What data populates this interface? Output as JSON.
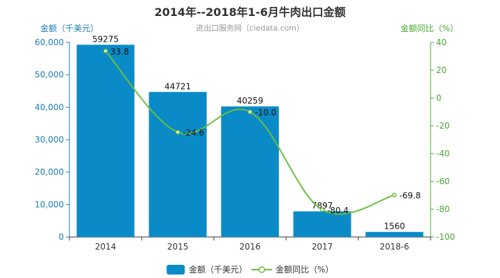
{
  "colors": {
    "bar": "#0a8bc8",
    "line": "#6abf3f",
    "left_axis": "#1a7fb8",
    "right_axis": "#4aa832"
  },
  "chart_data": {
    "type": "bar",
    "title": "2014年--2018年1-6月牛肉出口金额",
    "subtitle": "进出口服务网（ciedata.com）",
    "categories": [
      "2014",
      "2015",
      "2016",
      "2017",
      "2018-6"
    ],
    "y_left": {
      "label": "金额（千美元）",
      "range": [
        0,
        60000
      ],
      "ticks": [
        "0",
        "10,000",
        "20,000",
        "30,000",
        "40,000",
        "50,000",
        "60,000"
      ]
    },
    "y_right": {
      "label": "金额同比（%）",
      "range": [
        -100,
        40
      ],
      "ticks": [
        "-100",
        "-80",
        "-60",
        "-40",
        "-20",
        "0",
        "20",
        "40"
      ]
    },
    "series": [
      {
        "name": "金额（千美元）",
        "type": "bar",
        "axis": "left",
        "values": [
          59275,
          44721,
          40259,
          7897,
          1560
        ],
        "labels": [
          "59275",
          "44721",
          "40259",
          "7897",
          "1560"
        ]
      },
      {
        "name": "金额同比（%）",
        "type": "line",
        "axis": "right",
        "values": [
          33.8,
          -24.6,
          -10.0,
          -80.4,
          -69.8
        ],
        "labels": [
          "33.8",
          "-24.6",
          "-10.0",
          "-80.4",
          "-69.8"
        ]
      }
    ],
    "legend": [
      "金额（千美元）",
      "金额同比（%）"
    ],
    "legend_position": "bottom",
    "grid": false
  }
}
